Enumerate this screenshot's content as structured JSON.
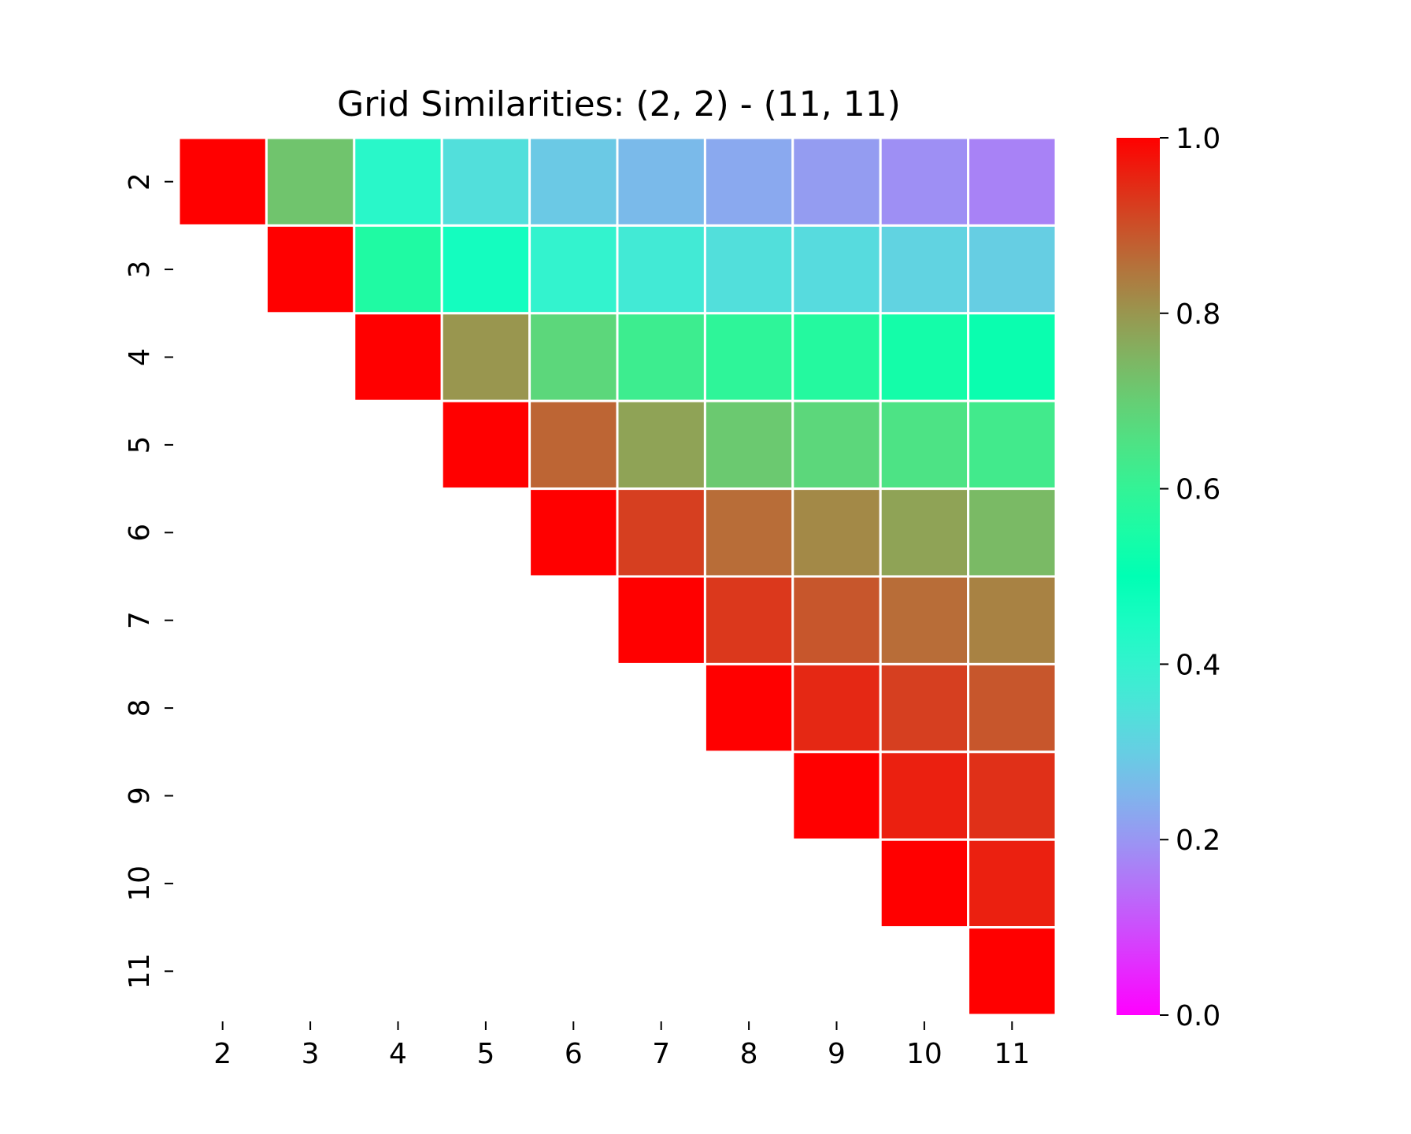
{
  "chart_data": {
    "type": "heatmap",
    "title": "Grid Similarities: (2, 2) - (11, 11)",
    "xlabel": "",
    "ylabel": "",
    "x_categories": [
      "2",
      "3",
      "4",
      "5",
      "6",
      "7",
      "8",
      "9",
      "10",
      "11"
    ],
    "y_categories": [
      "2",
      "3",
      "4",
      "5",
      "6",
      "7",
      "8",
      "9",
      "10",
      "11"
    ],
    "layout": "upper-triangle",
    "colormap": "rainbow",
    "vmin": 0.0,
    "vmax": 1.0,
    "colorbar_ticks": [
      "0.0",
      "0.2",
      "0.4",
      "0.6",
      "0.8",
      "1.0"
    ],
    "values": [
      [
        1.0,
        0.72,
        0.42,
        0.34,
        0.29,
        0.26,
        0.23,
        0.21,
        0.19,
        0.17
      ],
      [
        null,
        1.0,
        0.56,
        0.46,
        0.4,
        0.37,
        0.34,
        0.33,
        0.31,
        0.3
      ],
      [
        null,
        null,
        1.0,
        0.8,
        0.68,
        0.62,
        0.59,
        0.57,
        0.54,
        0.52
      ],
      [
        null,
        null,
        null,
        1.0,
        0.87,
        0.78,
        0.71,
        0.68,
        0.65,
        0.63
      ],
      [
        null,
        null,
        null,
        null,
        1.0,
        0.92,
        0.86,
        0.82,
        0.78,
        0.74
      ],
      [
        null,
        null,
        null,
        null,
        null,
        1.0,
        0.93,
        0.89,
        0.86,
        0.83
      ],
      [
        null,
        null,
        null,
        null,
        null,
        null,
        1.0,
        0.95,
        0.92,
        0.89
      ],
      [
        null,
        null,
        null,
        null,
        null,
        null,
        null,
        1.0,
        0.96,
        0.94
      ],
      [
        null,
        null,
        null,
        null,
        null,
        null,
        null,
        null,
        1.0,
        0.96
      ],
      [
        null,
        null,
        null,
        null,
        null,
        null,
        null,
        null,
        null,
        1.0
      ]
    ]
  }
}
